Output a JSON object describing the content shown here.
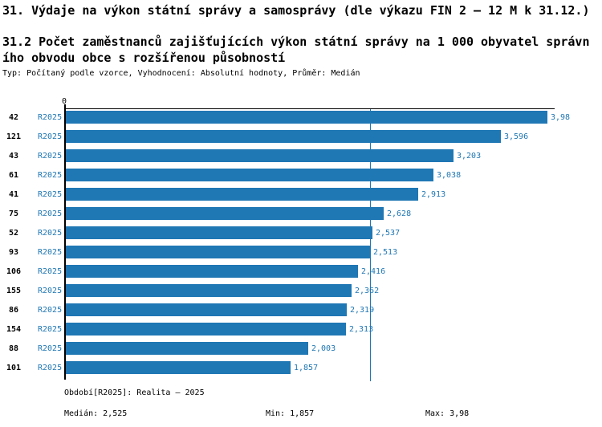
{
  "header": {
    "title": "31. Výdaje na výkon státní správy a samosprávy (dle výkazu FIN 2 – 12 M k 31.12.)",
    "subtitle_line1": "31.2 Počet zaměstnanců zajišťujících výkon státní správy na 1 000 obyvatel správn",
    "subtitle_line2": "ího obvodu obce s rozšířenou působností",
    "meta": "Typ: Počítaný podle vzorce, Vyhodnocení: Absolutní hodnoty, Průměr: Medián"
  },
  "chart_data": {
    "type": "bar",
    "orientation": "horizontal",
    "title": "31.2 Počet zaměstnanců zajišťujících výkon státní správy na 1 000 obyvatel správního obvodu obce s rozšířenou působností",
    "xlabel": "",
    "ylabel": "",
    "xlim": [
      0,
      4.05
    ],
    "axis_origin_label": "0",
    "grid": false,
    "legend_position": "none",
    "bar_color": "#1f77b4",
    "text_color_accent": "#1f77b4",
    "median_value": 2.525,
    "period_label": "R2025",
    "categories": [
      "42",
      "121",
      "43",
      "61",
      "41",
      "75",
      "52",
      "93",
      "106",
      "155",
      "86",
      "154",
      "88",
      "101"
    ],
    "series": [
      {
        "name": "R2025",
        "values": [
          3.98,
          3.596,
          3.203,
          3.038,
          2.913,
          2.628,
          2.537,
          2.513,
          2.416,
          2.362,
          2.319,
          2.313,
          2.003,
          1.857
        ],
        "value_labels": [
          "3,98",
          "3,596",
          "3,203",
          "3,038",
          "2,913",
          "2,628",
          "2,537",
          "2,513",
          "2,416",
          "2,362",
          "2,319",
          "2,313",
          "2,003",
          "1,857"
        ]
      }
    ]
  },
  "footer": {
    "period_info": "Období[R2025]: Realita – 2025",
    "median": "Medián: 2,525",
    "min": "Min: 1,857",
    "max": "Max: 3,98"
  }
}
